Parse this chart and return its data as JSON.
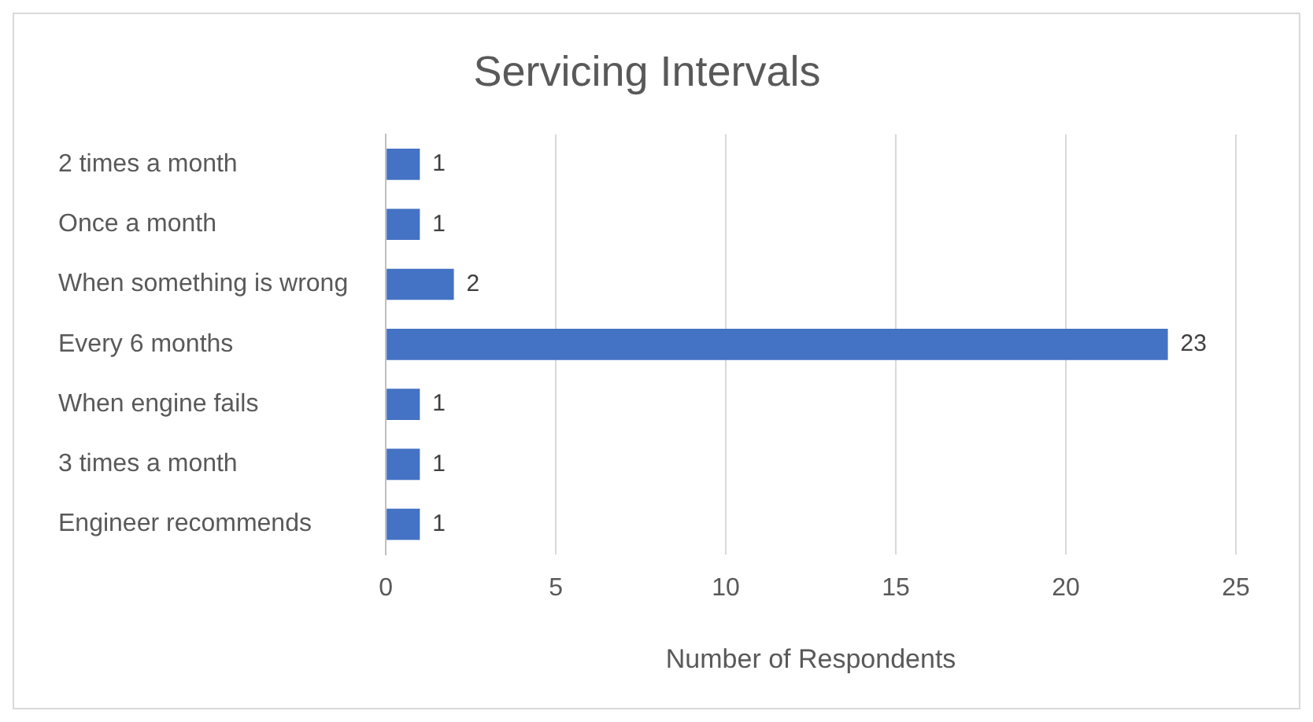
{
  "chart_data": {
    "type": "bar",
    "orientation": "horizontal",
    "title": "Servicing Intervals",
    "xlabel": "Number of Respondents",
    "categories": [
      "2 times a month",
      "Once a month",
      "When something is wrong",
      "Every 6 months",
      "When engine fails",
      "3 times a month",
      "Engineer recommends"
    ],
    "values": [
      1,
      1,
      2,
      23,
      1,
      1,
      1
    ],
    "color": "#4472c4",
    "xlim": [
      0,
      25
    ],
    "xticks": [
      0,
      5,
      10,
      15,
      20,
      25
    ],
    "grid": "x",
    "data_labels": true,
    "legend": false
  }
}
